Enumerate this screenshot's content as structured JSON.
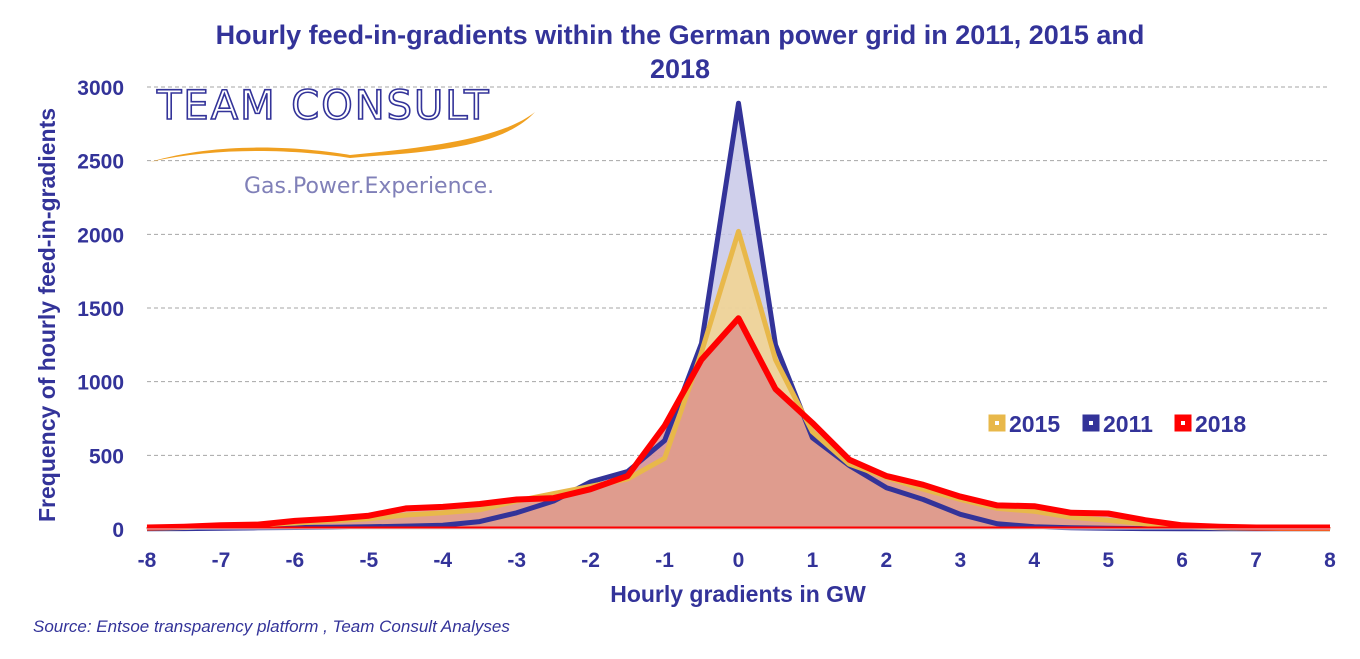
{
  "chart_data": {
    "type": "area",
    "title_line1": "Hourly feed-in-gradients within the German power grid in 2011, 2015 and",
    "title_line2": "2018",
    "xlabel": "Hourly gradients in GW",
    "ylabel": "Frequency of hourly feed-in-gradients",
    "xlim": [
      -8,
      8
    ],
    "ylim": [
      0,
      3000
    ],
    "x_ticks": [
      "-8",
      "-7",
      "-6",
      "-5",
      "-4",
      "-3",
      "-2",
      "-1",
      "0",
      "1",
      "2",
      "3",
      "4",
      "5",
      "6",
      "7",
      "8"
    ],
    "y_ticks": [
      "0",
      "500",
      "1000",
      "1500",
      "2000",
      "2500",
      "3000"
    ],
    "grid": "horizontal dashed",
    "legend_position": "right",
    "x": [
      -8,
      -7.5,
      -7,
      -6.5,
      -6,
      -5.5,
      -5,
      -4.5,
      -4,
      -3.5,
      -3,
      -2.5,
      -2,
      -1.5,
      -1,
      -0.5,
      0,
      0.5,
      1,
      1.5,
      2,
      2.5,
      3,
      3.5,
      4,
      4.5,
      5,
      5.5,
      6,
      6.5,
      7,
      7.5,
      8
    ],
    "series": [
      {
        "name": "2015",
        "color": "#e8b84a",
        "fill": "#f5d58a",
        "values": [
          5,
          10,
          20,
          30,
          40,
          55,
          70,
          95,
          110,
          130,
          190,
          240,
          290,
          340,
          480,
          1200,
          2020,
          1150,
          660,
          440,
          350,
          270,
          200,
          140,
          120,
          80,
          60,
          35,
          15,
          8,
          5,
          3,
          2
        ]
      },
      {
        "name": "2011",
        "color": "#333399",
        "fill": "#c8c8e8",
        "values": [
          2,
          3,
          5,
          8,
          10,
          12,
          15,
          20,
          25,
          50,
          110,
          190,
          320,
          390,
          600,
          1260,
          2890,
          1250,
          620,
          430,
          280,
          200,
          100,
          35,
          15,
          8,
          5,
          3,
          2,
          2,
          2,
          2,
          2
        ]
      },
      {
        "name": "2018",
        "color": "#ff0000",
        "fill": "#d98a8a",
        "values": [
          10,
          15,
          25,
          30,
          55,
          70,
          90,
          140,
          150,
          170,
          200,
          210,
          270,
          360,
          700,
          1150,
          1430,
          950,
          720,
          470,
          360,
          300,
          220,
          160,
          155,
          110,
          105,
          60,
          25,
          15,
          10,
          10,
          10
        ]
      }
    ]
  },
  "logo": {
    "name": "TEAM CONSULT",
    "tagline": "Gas.Power.Experience."
  },
  "source": "Source: Entsoe transparency platform , Team Consult Analyses"
}
